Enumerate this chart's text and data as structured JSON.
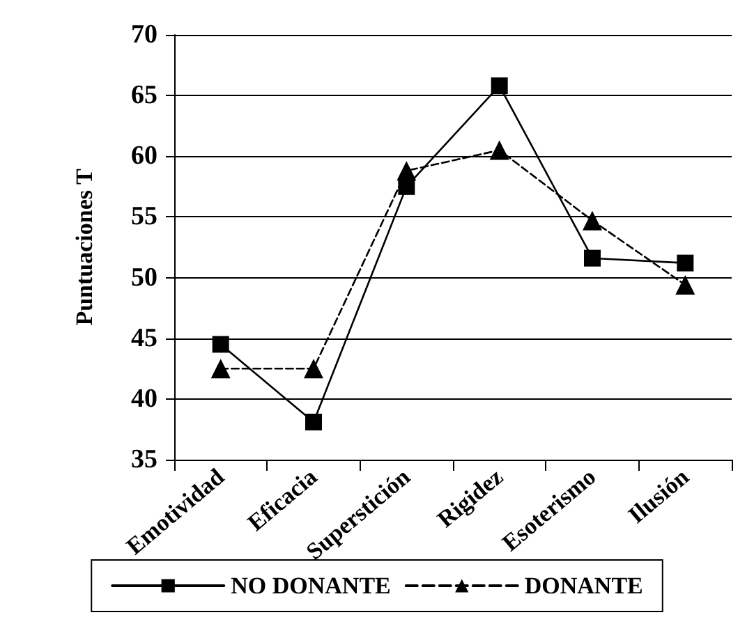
{
  "chart_data": {
    "type": "line",
    "ylabel": "Puntuaciones T",
    "categories": [
      "Emotividad",
      "Eficacia",
      "Superstición",
      "Rigidez",
      "Esoterismo",
      "Ilusión"
    ],
    "ylim": [
      35,
      70
    ],
    "yticks": [
      35,
      40,
      45,
      50,
      55,
      60,
      65,
      70
    ],
    "grid": "y",
    "legend": "bottom",
    "series": [
      {
        "name": "NO DONANTE",
        "color": "#000000",
        "marker": "square",
        "line_style": "solid",
        "values": [
          44.5,
          38.1,
          57.5,
          65.8,
          51.6,
          51.2
        ]
      },
      {
        "name": "DONANTE",
        "color": "#000000",
        "marker": "triangle",
        "line_style": "dashed",
        "values": [
          42.5,
          42.5,
          58.8,
          60.5,
          54.7,
          49.4
        ]
      }
    ]
  }
}
